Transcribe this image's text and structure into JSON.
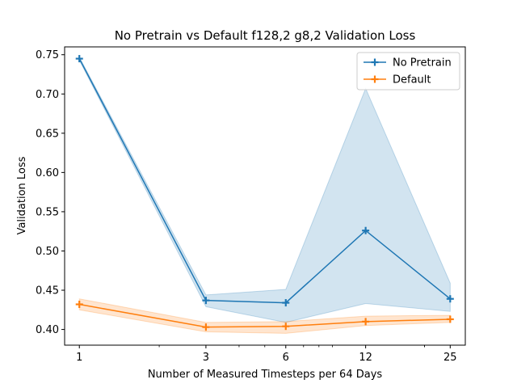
{
  "chart_data": {
    "type": "line",
    "title": "No Pretrain vs Default f128,2 g8,2 Validation Loss",
    "xlabel": "Number of Measured Timesteps per 64 Days",
    "ylabel": "Validation Loss",
    "x_scale": "log",
    "x": [
      1,
      3,
      6,
      12,
      25
    ],
    "x_tick_labels": [
      "1",
      "3",
      "6",
      "12",
      "25"
    ],
    "xlim": [
      0.88,
      28.5
    ],
    "ylim": [
      0.38,
      0.76
    ],
    "y_ticks": [
      0.4,
      0.45,
      0.5,
      0.55,
      0.6,
      0.65,
      0.7,
      0.75
    ],
    "y_tick_labels": [
      "0.40",
      "0.45",
      "0.50",
      "0.55",
      "0.60",
      "0.65",
      "0.70",
      "0.75"
    ],
    "grid": false,
    "legend_position": "top-right",
    "series": [
      {
        "name": "No Pretrain",
        "color": "#1f77b4",
        "marker": "plus",
        "values": [
          0.745,
          0.437,
          0.434,
          0.526,
          0.439
        ],
        "band_lower": [
          0.743,
          0.429,
          0.409,
          0.433,
          0.423
        ],
        "band_upper": [
          0.747,
          0.444,
          0.451,
          0.707,
          0.459
        ]
      },
      {
        "name": "Default",
        "color": "#ff7f0e",
        "marker": "plus",
        "values": [
          0.432,
          0.403,
          0.404,
          0.41,
          0.413
        ],
        "band_lower": [
          0.425,
          0.397,
          0.395,
          0.405,
          0.409
        ],
        "band_upper": [
          0.439,
          0.409,
          0.41,
          0.417,
          0.418
        ]
      }
    ]
  }
}
